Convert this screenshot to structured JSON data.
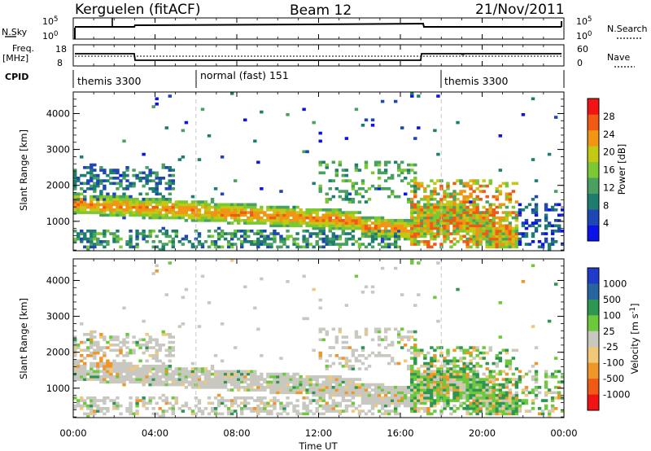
{
  "header": {
    "station": "Kerguelen (fitACF)",
    "beam": "Beam 12",
    "date": "21/Nov/2011"
  },
  "nsky_panel": {
    "left_label": "N.Sky",
    "left_ticks": [
      "10^5",
      "10^0"
    ],
    "right_ticks": [
      "10^5",
      "10^0"
    ],
    "right_label": "N.Search"
  },
  "freq_panel": {
    "left_label_line1": "Freq.",
    "left_label_line2": "[MHz]",
    "left_ticks": [
      "18",
      "8"
    ],
    "right_ticks": [
      "60",
      "0"
    ],
    "right_label": "Nave"
  },
  "cpid_panel": {
    "label": "CPID",
    "segments": [
      {
        "text": "themis 3300",
        "start_hour": 0
      },
      {
        "text": "normal (fast) 151",
        "start_hour": 6
      },
      {
        "text": "themis 3300",
        "start_hour": 18
      }
    ]
  },
  "time_axis": {
    "label": "Time UT",
    "ticks": [
      "00:00",
      "04:00",
      "08:00",
      "12:00",
      "16:00",
      "20:00",
      "00:00"
    ]
  },
  "chart_data": [
    {
      "type": "heatmap",
      "quantity": "Power",
      "ylabel": "Slant Range [km]",
      "xlabel": "Time UT",
      "xlim_hours": [
        0,
        24
      ],
      "ylim_km": [
        180,
        4600
      ],
      "yticks": [
        "1000",
        "2000",
        "3000",
        "4000"
      ],
      "colorbar": {
        "label": "Power [dB]",
        "range": [
          0,
          32
        ],
        "ticks": [
          "4",
          "8",
          "12",
          "16",
          "20",
          "24",
          "28"
        ],
        "colors": [
          "#0a14e6",
          "#1e46b4",
          "#1e7d6e",
          "#4aa060",
          "#7ac832",
          "#c3c814",
          "#f09614",
          "#f05a14",
          "#f01414"
        ]
      }
    },
    {
      "type": "heatmap",
      "quantity": "Velocity",
      "ylabel": "Slant Range [km]",
      "xlabel": "Time UT",
      "xlim_hours": [
        0,
        24
      ],
      "ylim_km": [
        180,
        4600
      ],
      "yticks": [
        "1000",
        "2000",
        "3000",
        "4000"
      ],
      "colorbar": {
        "label": "Velocity [m s^-1]",
        "ticks": [
          "1000",
          "500",
          "100",
          "25",
          "-25",
          "-100",
          "-500",
          "-1000"
        ],
        "colors": [
          "#1e3cc8",
          "#2864a0",
          "#2d9650",
          "#6ec83c",
          "#c8c8c0",
          "#f0c878",
          "#f09628",
          "#f05a14",
          "#f01414"
        ]
      }
    }
  ]
}
